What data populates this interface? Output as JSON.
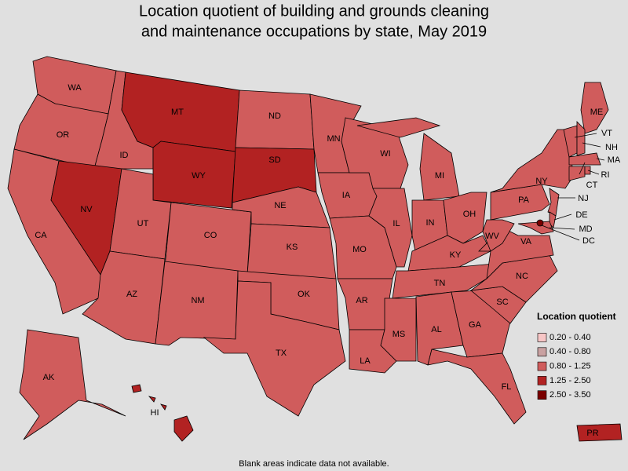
{
  "title": [
    "Location quotient of building and grounds cleaning",
    "and maintenance occupations by state, May 2019"
  ],
  "legend": {
    "title": "Location quotient",
    "items": [
      {
        "label": "0.20 - 0.40",
        "color": "#f7c6c6"
      },
      {
        "label": "0.40 - 0.80",
        "color": "#c9a1a1"
      },
      {
        "label": "0.80 - 1.25",
        "color": "#d05c5c"
      },
      {
        "label": "1.25 - 2.50",
        "color": "#b22222"
      },
      {
        "label": "2.50 - 3.50",
        "color": "#7a0000"
      }
    ]
  },
  "states": [
    {
      "label": "WA",
      "bin": 2
    },
    {
      "label": "OR",
      "bin": 2
    },
    {
      "label": "ID",
      "bin": 2
    },
    {
      "label": "MT",
      "bin": 3
    },
    {
      "label": "WY",
      "bin": 3
    },
    {
      "label": "CA",
      "bin": 2
    },
    {
      "label": "NV",
      "bin": 3
    },
    {
      "label": "UT",
      "bin": 2
    },
    {
      "label": "CO",
      "bin": 2
    },
    {
      "label": "AZ",
      "bin": 2
    },
    {
      "label": "NM",
      "bin": 2
    },
    {
      "label": "ND",
      "bin": 2
    },
    {
      "label": "SD",
      "bin": 3
    },
    {
      "label": "NE",
      "bin": 2
    },
    {
      "label": "KS",
      "bin": 2
    },
    {
      "label": "OK",
      "bin": 2
    },
    {
      "label": "TX",
      "bin": 2
    },
    {
      "label": "MN",
      "bin": 2
    },
    {
      "label": "IA",
      "bin": 2
    },
    {
      "label": "MO",
      "bin": 2
    },
    {
      "label": "AR",
      "bin": 2
    },
    {
      "label": "LA",
      "bin": 2
    },
    {
      "label": "WI",
      "bin": 2
    },
    {
      "label": "IL",
      "bin": 2
    },
    {
      "label": "MI",
      "bin": 2
    },
    {
      "label": "IN",
      "bin": 2
    },
    {
      "label": "OH",
      "bin": 2
    },
    {
      "label": "KY",
      "bin": 2
    },
    {
      "label": "TN",
      "bin": 2
    },
    {
      "label": "MS",
      "bin": 2
    },
    {
      "label": "AL",
      "bin": 2
    },
    {
      "label": "GA",
      "bin": 2
    },
    {
      "label": "FL",
      "bin": 2
    },
    {
      "label": "SC",
      "bin": 2
    },
    {
      "label": "NC",
      "bin": 2
    },
    {
      "label": "VA",
      "bin": 2
    },
    {
      "label": "WV",
      "bin": 2
    },
    {
      "label": "PA",
      "bin": 2
    },
    {
      "label": "NY",
      "bin": 2
    },
    {
      "label": "ME",
      "bin": 2
    },
    {
      "label": "VT",
      "bin": 2
    },
    {
      "label": "NH",
      "bin": 2
    },
    {
      "label": "MA",
      "bin": 2
    },
    {
      "label": "CT",
      "bin": 2
    },
    {
      "label": "RI",
      "bin": 2
    },
    {
      "label": "NJ",
      "bin": 2
    },
    {
      "label": "DE",
      "bin": 2
    },
    {
      "label": "MD",
      "bin": 2
    },
    {
      "label": "DC",
      "bin": 4
    },
    {
      "label": "AK",
      "bin": 2
    },
    {
      "label": "HI",
      "bin": 3
    },
    {
      "label": "PR",
      "bin": 3
    }
  ],
  "note": "Blank areas indicate data not available."
}
